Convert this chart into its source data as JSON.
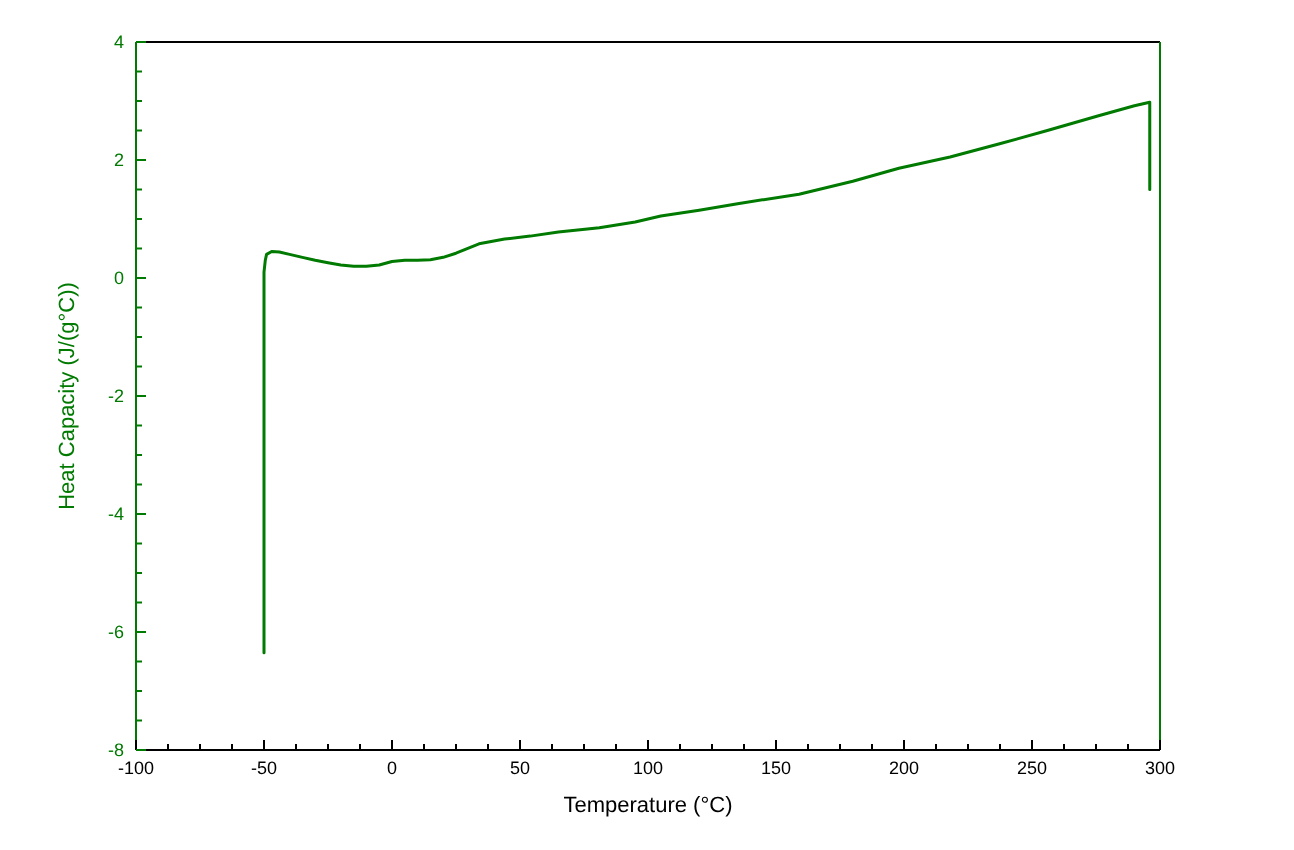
{
  "chart_data": {
    "type": "line",
    "xlabel": "Temperature (°C)",
    "ylabel": "Heat Capacity (J/(g°C))",
    "xlim": [
      -100,
      300
    ],
    "ylim": [
      -8,
      4
    ],
    "xticks": [
      -100,
      {
        "value": -87.5,
        "label": null
      },
      {
        "value": -75,
        "label": null
      },
      {
        "value": -62.5,
        "label": null
      },
      -50,
      {
        "value": -37.5,
        "label": null
      },
      {
        "value": -25,
        "label": null
      },
      {
        "value": -12.5,
        "label": null
      },
      0,
      {
        "value": 12.5,
        "label": null
      },
      {
        "value": 25,
        "label": null
      },
      {
        "value": 37.5,
        "label": null
      },
      50,
      {
        "value": 62.5,
        "label": null
      },
      {
        "value": 75,
        "label": null
      },
      {
        "value": 87.5,
        "label": null
      },
      100,
      {
        "value": 112.5,
        "label": null
      },
      {
        "value": 125,
        "label": null
      },
      {
        "value": 137.5,
        "label": null
      },
      150,
      {
        "value": 162.5,
        "label": null
      },
      {
        "value": 175,
        "label": null
      },
      {
        "value": 187.5,
        "label": null
      },
      200,
      {
        "value": 212.5,
        "label": null
      },
      {
        "value": 225,
        "label": null
      },
      {
        "value": 237.5,
        "label": null
      },
      250,
      {
        "value": 262.5,
        "label": null
      },
      {
        "value": 275,
        "label": null
      },
      {
        "value": 287.5,
        "label": null
      },
      300
    ],
    "yticks": [
      -8,
      {
        "value": -7.5,
        "label": null
      },
      {
        "value": -7,
        "label": null
      },
      {
        "value": -6.5,
        "label": null
      },
      -6,
      {
        "value": -5.5,
        "label": null
      },
      {
        "value": -5,
        "label": null
      },
      {
        "value": -4.5,
        "label": null
      },
      -4,
      {
        "value": -3.5,
        "label": null
      },
      {
        "value": -3,
        "label": null
      },
      {
        "value": -2.5,
        "label": null
      },
      -2,
      {
        "value": -1.5,
        "label": null
      },
      {
        "value": -1,
        "label": null
      },
      {
        "value": -0.5,
        "label": null
      },
      0,
      {
        "value": 0.5,
        "label": null
      },
      {
        "value": 1,
        "label": null
      },
      {
        "value": 1.5,
        "label": null
      },
      2,
      {
        "value": 2.5,
        "label": null
      },
      {
        "value": 3,
        "label": null
      },
      {
        "value": 3.5,
        "label": null
      },
      4
    ],
    "grid": false,
    "marker": "none",
    "line_style": "solid",
    "series": [
      {
        "color": "#007a00",
        "x": [
          -50,
          -50,
          -49.5,
          -49,
          -47,
          -44,
          -40,
          -35,
          -30,
          -25,
          -20,
          -15,
          -10,
          -5,
          0,
          5,
          10,
          15,
          20,
          25,
          34,
          44,
          54,
          65,
          81,
          95,
          105,
          120,
          135,
          159,
          180,
          198,
          218,
          237,
          256,
          276,
          290,
          296,
          296
        ],
        "values": [
          -6.35,
          0.1,
          0.3,
          0.4,
          0.45,
          0.44,
          0.4,
          0.35,
          0.3,
          0.26,
          0.22,
          0.2,
          0.2,
          0.22,
          0.28,
          0.3,
          0.3,
          0.31,
          0.35,
          0.42,
          0.58,
          0.66,
          0.71,
          0.78,
          0.85,
          0.95,
          1.05,
          1.15,
          1.26,
          1.42,
          1.64,
          1.86,
          2.05,
          2.27,
          2.5,
          2.75,
          2.92,
          2.98,
          1.5
        ]
      }
    ]
  }
}
